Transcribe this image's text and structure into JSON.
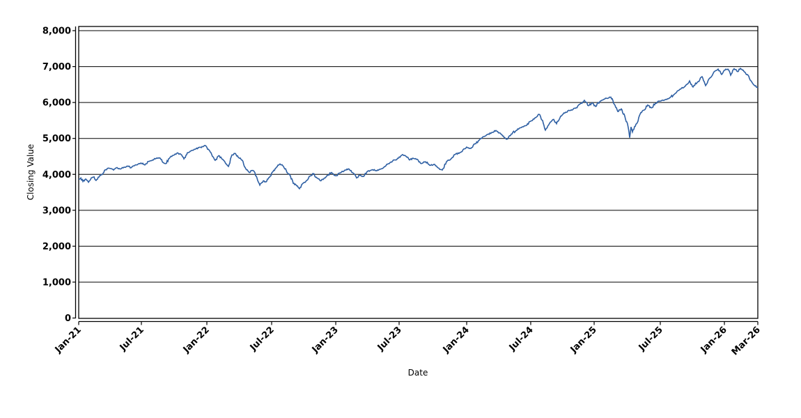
{
  "figure": {
    "background": "#ffffff",
    "line_color": "#2e5fa3",
    "grid_color": "#000000",
    "axis_color": "#000000"
  },
  "chart_data": {
    "type": "line",
    "title": "",
    "xlabel": "Date",
    "ylabel": "Closing Value",
    "grid": "horizontal",
    "legend": "none",
    "x_range": [
      "Jan-2021",
      "Mar-2026"
    ],
    "ylim": [
      0,
      8130
    ],
    "y_ticks": [
      {
        "value": 0,
        "label": "0"
      },
      {
        "value": 1000,
        "label": "1,000"
      },
      {
        "value": 2000,
        "label": "2,000"
      },
      {
        "value": 3000,
        "label": "3,000"
      },
      {
        "value": 4000,
        "label": "4,000"
      },
      {
        "value": 5000,
        "label": "5,000"
      },
      {
        "value": 6000,
        "label": "6,000"
      },
      {
        "value": 7000,
        "label": "7,000"
      },
      {
        "value": 8000,
        "label": "8,000"
      }
    ],
    "x_ticks": [
      {
        "label": "Jan-21",
        "f": 0.0
      },
      {
        "label": "Jul-21",
        "f": 0.0923
      },
      {
        "label": "Jan-22",
        "f": 0.1887
      },
      {
        "label": "Jul-22",
        "f": 0.2841
      },
      {
        "label": "Jan-23",
        "f": 0.3785
      },
      {
        "label": "Jul-23",
        "f": 0.4718
      },
      {
        "label": "Jan-24",
        "f": 0.5713
      },
      {
        "label": "Jul-24",
        "f": 0.6656
      },
      {
        "label": "Jan-25",
        "f": 0.759
      },
      {
        "label": "Jul-25",
        "f": 0.8564
      },
      {
        "label": "Jan-26",
        "f": 0.9508
      },
      {
        "label": "Mar-26",
        "f": 1.0
      }
    ],
    "series": [
      {
        "name": "Closing Value",
        "x_unit": "fraction of x-axis (Jan-2021 to Mar-2026)",
        "points": [
          [
            0.0,
            3870
          ],
          [
            0.0031,
            3900
          ],
          [
            0.0062,
            3800
          ],
          [
            0.0103,
            3870
          ],
          [
            0.0144,
            3780
          ],
          [
            0.0185,
            3900
          ],
          [
            0.0226,
            3930
          ],
          [
            0.0256,
            3830
          ],
          [
            0.0308,
            3960
          ],
          [
            0.0359,
            4030
          ],
          [
            0.04,
            4130
          ],
          [
            0.0451,
            4170
          ],
          [
            0.0513,
            4120
          ],
          [
            0.0564,
            4190
          ],
          [
            0.0605,
            4150
          ],
          [
            0.0667,
            4200
          ],
          [
            0.0718,
            4230
          ],
          [
            0.0769,
            4180
          ],
          [
            0.0821,
            4240
          ],
          [
            0.0872,
            4280
          ],
          [
            0.0923,
            4310
          ],
          [
            0.0974,
            4260
          ],
          [
            0.1026,
            4360
          ],
          [
            0.1087,
            4400
          ],
          [
            0.1138,
            4440
          ],
          [
            0.119,
            4460
          ],
          [
            0.1241,
            4330
          ],
          [
            0.1282,
            4300
          ],
          [
            0.1333,
            4440
          ],
          [
            0.1395,
            4530
          ],
          [
            0.1456,
            4600
          ],
          [
            0.1508,
            4550
          ],
          [
            0.1549,
            4430
          ],
          [
            0.16,
            4600
          ],
          [
            0.1651,
            4650
          ],
          [
            0.1713,
            4700
          ],
          [
            0.1774,
            4750
          ],
          [
            0.1826,
            4770
          ],
          [
            0.1867,
            4800
          ],
          [
            0.1918,
            4680
          ],
          [
            0.1969,
            4500
          ],
          [
            0.201,
            4390
          ],
          [
            0.2062,
            4520
          ],
          [
            0.2113,
            4420
          ],
          [
            0.2164,
            4300
          ],
          [
            0.2205,
            4220
          ],
          [
            0.2256,
            4540
          ],
          [
            0.2308,
            4580
          ],
          [
            0.2359,
            4460
          ],
          [
            0.241,
            4390
          ],
          [
            0.2462,
            4150
          ],
          [
            0.2513,
            4050
          ],
          [
            0.2564,
            4110
          ],
          [
            0.2615,
            3950
          ],
          [
            0.2667,
            3700
          ],
          [
            0.2718,
            3820
          ],
          [
            0.2759,
            3790
          ],
          [
            0.281,
            3920
          ],
          [
            0.2862,
            4080
          ],
          [
            0.2913,
            4200
          ],
          [
            0.2964,
            4290
          ],
          [
            0.3015,
            4220
          ],
          [
            0.3067,
            4050
          ],
          [
            0.3118,
            3950
          ],
          [
            0.3159,
            3750
          ],
          [
            0.321,
            3680
          ],
          [
            0.3251,
            3600
          ],
          [
            0.3303,
            3750
          ],
          [
            0.3354,
            3830
          ],
          [
            0.3405,
            3950
          ],
          [
            0.3456,
            4020
          ],
          [
            0.3508,
            3900
          ],
          [
            0.3559,
            3820
          ],
          [
            0.361,
            3880
          ],
          [
            0.3662,
            3970
          ],
          [
            0.3723,
            4050
          ],
          [
            0.3785,
            3960
          ],
          [
            0.3867,
            4060
          ],
          [
            0.3928,
            4120
          ],
          [
            0.3979,
            4150
          ],
          [
            0.4031,
            4050
          ],
          [
            0.4092,
            3900
          ],
          [
            0.4144,
            3980
          ],
          [
            0.4195,
            3940
          ],
          [
            0.4256,
            4090
          ],
          [
            0.4328,
            4130
          ],
          [
            0.439,
            4100
          ],
          [
            0.4451,
            4150
          ],
          [
            0.4513,
            4220
          ],
          [
            0.4585,
            4330
          ],
          [
            0.4646,
            4400
          ],
          [
            0.4708,
            4450
          ],
          [
            0.4769,
            4550
          ],
          [
            0.4821,
            4500
          ],
          [
            0.4872,
            4400
          ],
          [
            0.4923,
            4450
          ],
          [
            0.4985,
            4420
          ],
          [
            0.5046,
            4300
          ],
          [
            0.5108,
            4350
          ],
          [
            0.5169,
            4250
          ],
          [
            0.5231,
            4280
          ],
          [
            0.5292,
            4180
          ],
          [
            0.5354,
            4120
          ],
          [
            0.5415,
            4350
          ],
          [
            0.5477,
            4420
          ],
          [
            0.5538,
            4550
          ],
          [
            0.561,
            4600
          ],
          [
            0.5672,
            4710
          ],
          [
            0.5713,
            4760
          ],
          [
            0.5774,
            4720
          ],
          [
            0.5836,
            4850
          ],
          [
            0.5897,
            4950
          ],
          [
            0.5959,
            5050
          ],
          [
            0.6021,
            5110
          ],
          [
            0.6092,
            5170
          ],
          [
            0.6144,
            5220
          ],
          [
            0.6205,
            5150
          ],
          [
            0.6267,
            5020
          ],
          [
            0.6308,
            4980
          ],
          [
            0.6369,
            5120
          ],
          [
            0.6441,
            5220
          ],
          [
            0.6513,
            5300
          ],
          [
            0.6574,
            5350
          ],
          [
            0.6656,
            5480
          ],
          [
            0.6718,
            5570
          ],
          [
            0.6779,
            5670
          ],
          [
            0.6831,
            5500
          ],
          [
            0.6872,
            5230
          ],
          [
            0.6933,
            5420
          ],
          [
            0.6995,
            5530
          ],
          [
            0.7036,
            5410
          ],
          [
            0.7097,
            5620
          ],
          [
            0.7169,
            5730
          ],
          [
            0.7241,
            5780
          ],
          [
            0.7313,
            5840
          ],
          [
            0.7385,
            5960
          ],
          [
            0.7446,
            6060
          ],
          [
            0.7508,
            5910
          ],
          [
            0.7559,
            5990
          ],
          [
            0.761,
            5890
          ],
          [
            0.7672,
            6020
          ],
          [
            0.7733,
            6090
          ],
          [
            0.7795,
            6120
          ],
          [
            0.7836,
            6150
          ],
          [
            0.7887,
            5950
          ],
          [
            0.7938,
            5750
          ],
          [
            0.799,
            5820
          ],
          [
            0.8041,
            5620
          ],
          [
            0.8082,
            5400
          ],
          [
            0.8113,
            5020
          ],
          [
            0.8133,
            5320
          ],
          [
            0.8154,
            5180
          ],
          [
            0.8185,
            5330
          ],
          [
            0.8226,
            5440
          ],
          [
            0.8277,
            5720
          ],
          [
            0.8328,
            5790
          ],
          [
            0.8379,
            5930
          ],
          [
            0.8431,
            5850
          ],
          [
            0.8492,
            5980
          ],
          [
            0.8564,
            6040
          ],
          [
            0.8636,
            6080
          ],
          [
            0.8708,
            6140
          ],
          [
            0.879,
            6260
          ],
          [
            0.8862,
            6370
          ],
          [
            0.8933,
            6460
          ],
          [
            0.8995,
            6600
          ],
          [
            0.9046,
            6430
          ],
          [
            0.9108,
            6560
          ],
          [
            0.9179,
            6720
          ],
          [
            0.9231,
            6470
          ],
          [
            0.9292,
            6680
          ],
          [
            0.9354,
            6850
          ],
          [
            0.9415,
            6930
          ],
          [
            0.9467,
            6780
          ],
          [
            0.9508,
            6900
          ],
          [
            0.9559,
            6930
          ],
          [
            0.96,
            6760
          ],
          [
            0.9651,
            6940
          ],
          [
            0.9703,
            6860
          ],
          [
            0.9744,
            6950
          ],
          [
            0.9785,
            6900
          ],
          [
            0.9826,
            6790
          ],
          [
            0.9867,
            6730
          ],
          [
            0.9908,
            6580
          ],
          [
            0.9949,
            6480
          ],
          [
            1.0,
            6410
          ]
        ]
      }
    ]
  }
}
